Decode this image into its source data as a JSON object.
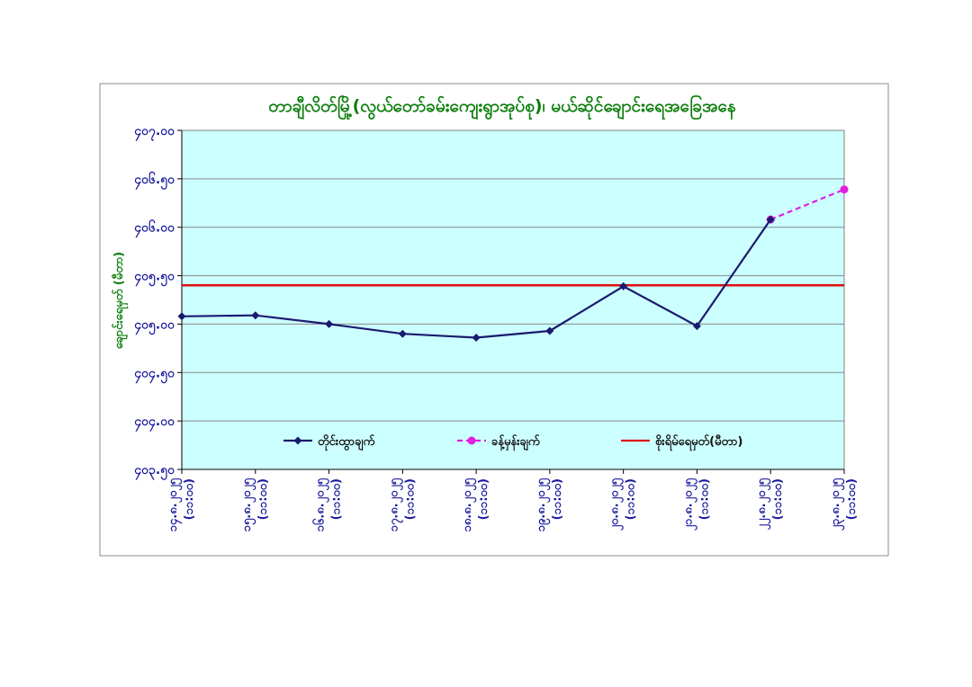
{
  "chart_data": {
    "type": "line",
    "title": "တာချီလိတ်မြို့(လွယ်တော်ခမ်းကျေးရွာအုပ်စု)၊ မယ်ဆိုင်ချောင်းရေအခြေအနေ",
    "xlabel": "",
    "ylabel": "ချောင်းရေမှတ် (မီတာ)",
    "ylim": [
      403.5,
      407.0
    ],
    "yticks": [
      403.5,
      404.0,
      404.5,
      405.0,
      405.5,
      406.0,
      406.5,
      407.0
    ],
    "ytick_labels": [
      "၄၀၃.၅၀",
      "၄၀၄.၀၀",
      "၄၀၄.၅၀",
      "၄၀၅.၀၀",
      "၄၀၅.၅၀",
      "၄၀၆.၀၀",
      "၄၀၆.၅၀",
      "၄၀၇.၀၀"
    ],
    "categories": [
      [
        "၁၄.၈.၂၀၂၅",
        "(၁၁:၀၀)"
      ],
      [
        "၁၅.၈.၂၀၂၅",
        "(၁၁:၀၀)"
      ],
      [
        "၁၆.၈.၂၀၂၅",
        "(၁၁:၀၀)"
      ],
      [
        "၁၇.၈.၂၀၂၅",
        "(၁၁:၀၀)"
      ],
      [
        "၁၈.၈.၂၀၂၅",
        "(၁၁:၀၀)"
      ],
      [
        "၁၉.၈.၂၀၂၅",
        "(၁၁:၀၀)"
      ],
      [
        "၂၀.၈.၂၀၂၅",
        "(၁၁:၀၀)"
      ],
      [
        "၂၁.၈.၂၀၂၅",
        "(၁၁:၀၀)"
      ],
      [
        "၂၂.၈.၂၀၂၅",
        "(၁၁:၀၀)"
      ],
      [
        "၂၃.၈.၂၀၂၅",
        "(၁၁:၀၀)"
      ]
    ],
    "series": [
      {
        "name": "တိုင်းထွာချက်",
        "color": "#1a1a6e",
        "style": "solid",
        "marker": "diamond",
        "values": [
          405.08,
          405.09,
          405.0,
          404.9,
          404.86,
          404.93,
          405.39,
          404.98,
          406.08,
          null
        ]
      },
      {
        "name": "ခန့်မှန်းချက်",
        "color": "#e020e0",
        "style": "dashed",
        "marker": "circle",
        "values": [
          null,
          null,
          null,
          null,
          null,
          null,
          null,
          null,
          406.08,
          406.39
        ]
      },
      {
        "name": "စိုးရိမ်ရေမှတ်(မီတာ)",
        "color": "#e01010",
        "style": "solid",
        "marker": "none",
        "values": [
          405.4,
          405.4,
          405.4,
          405.4,
          405.4,
          405.4,
          405.4,
          405.4,
          405.4,
          405.4
        ]
      }
    ],
    "grid": true,
    "legend": "bottom-inside"
  }
}
